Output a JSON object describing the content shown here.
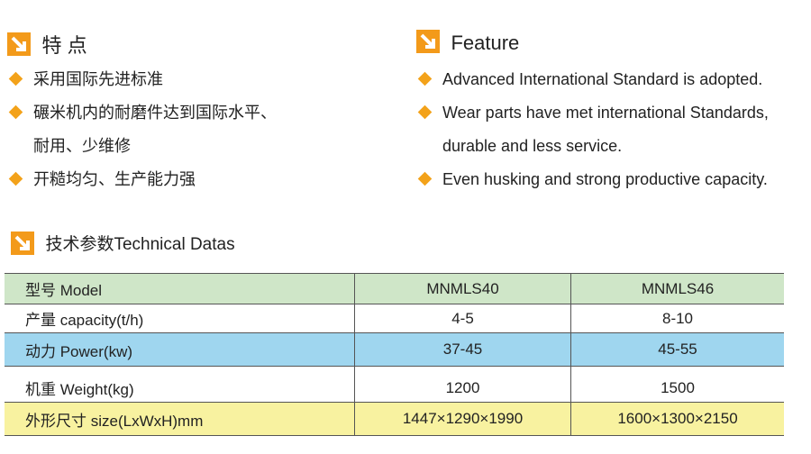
{
  "colors": {
    "accent": "#f39a1a",
    "row_model": "#cfe6c8",
    "row_power": "#9fd6ef",
    "row_size": "#f8f2a0"
  },
  "features_cn": {
    "title": "特 点",
    "items": [
      "采用国际先进标准",
      "碾米机内的耐磨件达到国际水平、",
      "耐用、少维修",
      "开糙均匀、生产能力强"
    ]
  },
  "features_en": {
    "title": "Feature",
    "items": [
      "Advanced International Standard is adopted.",
      "Wear parts have met international Standards,",
      "durable and less service.",
      "Even husking and strong productive capacity."
    ]
  },
  "tech": {
    "title": "技术参数Technical Datas",
    "rows": [
      {
        "label": "型号  Model",
        "v1": "MNMLS40",
        "v2": "MNMLS46"
      },
      {
        "label": "产量  capacity(t/h)",
        "v1": "4-5",
        "v2": "8-10"
      },
      {
        "label": "动力  Power(kw)",
        "v1": "37-45",
        "v2": "45-55"
      },
      {
        "label": "机重  Weight(kg)",
        "v1": "1200",
        "v2": "1500"
      },
      {
        "label": "外形尺寸 size(LxWxH)mm",
        "v1": "1447×1290×1990",
        "v2": "1600×1300×2150"
      }
    ]
  }
}
